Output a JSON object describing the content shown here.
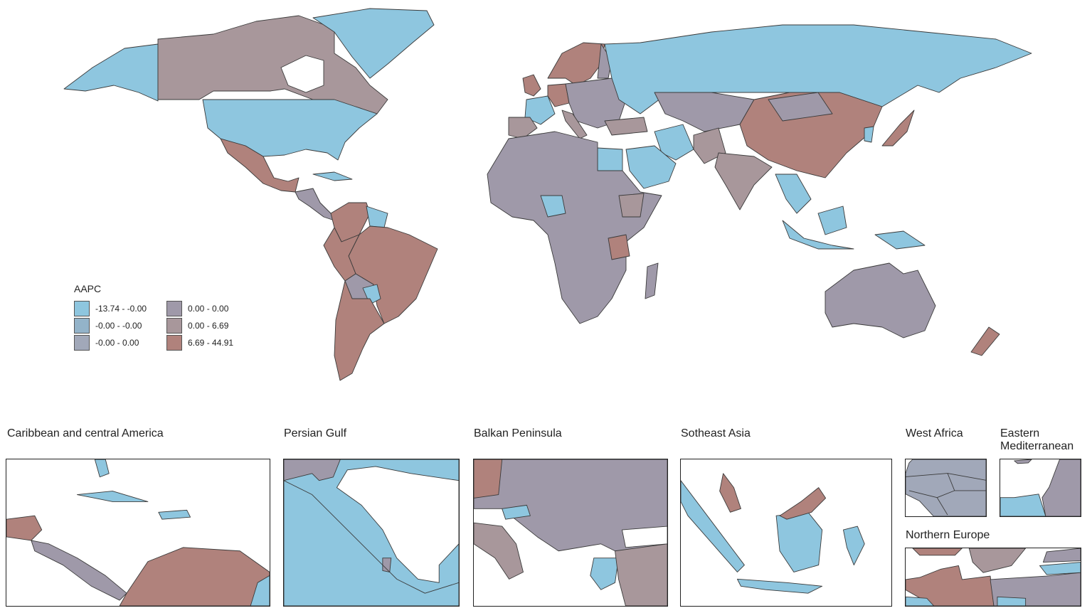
{
  "legend": {
    "title": "AAPC",
    "items": [
      {
        "label": "-13.74 - -0.00",
        "color": "#8ec6df"
      },
      {
        "label": "-0.00 - -0.00",
        "color": "#93b3c9"
      },
      {
        "label": "-0.00 - 0.00",
        "color": "#a1a8b9"
      },
      {
        "label": "0.00 - 0.00",
        "color": "#9f99a9"
      },
      {
        "label": "0.00 - 6.69",
        "color": "#a8979b"
      },
      {
        "label": "6.69 - 44.91",
        "color": "#b0827c"
      }
    ]
  },
  "insets": [
    {
      "title": "Caribbean and central America"
    },
    {
      "title": "Persian Gulf"
    },
    {
      "title": "Balkan Peninsula"
    },
    {
      "title": "Sotheast Asia"
    },
    {
      "title": "West Africa"
    },
    {
      "title": "Eastern Mediterranean"
    },
    {
      "title": "Northern Europe"
    }
  ]
}
